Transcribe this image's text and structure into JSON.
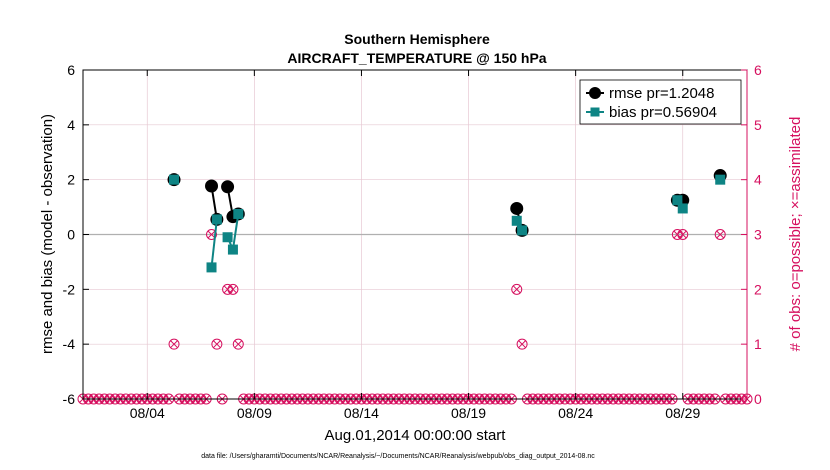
{
  "chart_data": {
    "type": "line",
    "title": "Southern Hemisphere",
    "subtitle": "AIRCRAFT_TEMPERATURE @ 150 hPa",
    "xlabel": "Aug.01,2014 00:00:00 start",
    "ylabel": "rmse and bias (model - observation)",
    "ylabel_right": "# of obs: o=possible; ×=assimilated",
    "footer": "data file: /Users/gharamti/Documents/NCAR/Reanalysis/~/Documents/NCAR/Reanalysis/webpub/obs_diag_output_2014-08.nc",
    "xlim": [
      1.0,
      32.0
    ],
    "ylim": [
      -6,
      6
    ],
    "ylim_right": [
      0,
      6
    ],
    "x_ticks": [
      4,
      9,
      14,
      19,
      24,
      29
    ],
    "x_tick_labels": [
      "08/04",
      "08/09",
      "08/14",
      "08/19",
      "08/24",
      "08/29"
    ],
    "y_ticks": [
      -6,
      -4,
      -2,
      0,
      2,
      4,
      6
    ],
    "y_tick_labels": [
      "-6",
      "-4",
      "-2",
      "0",
      "2",
      "4",
      "6"
    ],
    "y_ticks_right": [
      0,
      1,
      2,
      3,
      4,
      5,
      6
    ],
    "y_tick_labels_right": [
      "0",
      "1",
      "2",
      "3",
      "4",
      "5",
      "6"
    ],
    "colors": {
      "rmse": "#000000",
      "bias": "#0e8484",
      "obs": "#d6105f",
      "grid": "#e6c8d2",
      "zero": "#b0b0b0"
    },
    "series": [
      {
        "name": "rmse pr=1.2048",
        "segments": [
          [
            [
              5.25,
              2.0
            ]
          ],
          [
            [
              7.0,
              1.77
            ],
            [
              7.25,
              0.55
            ]
          ],
          [
            [
              7.75,
              1.74
            ],
            [
              8.0,
              0.65
            ],
            [
              8.25,
              0.75
            ]
          ],
          [
            [
              21.25,
              0.95
            ],
            [
              21.5,
              0.15
            ]
          ],
          [
            [
              28.75,
              1.25
            ],
            [
              29.0,
              1.25
            ]
          ],
          [
            [
              30.75,
              2.15
            ]
          ]
        ]
      },
      {
        "name": "bias pr=0.56904",
        "segments": [
          [
            [
              5.25,
              2.0
            ]
          ],
          [
            [
              7.0,
              -1.2
            ],
            [
              7.25,
              0.55
            ]
          ],
          [
            [
              7.75,
              -0.1
            ],
            [
              8.0,
              -0.55
            ],
            [
              8.25,
              0.75
            ]
          ],
          [
            [
              21.25,
              0.5
            ],
            [
              21.5,
              0.15
            ]
          ],
          [
            [
              28.75,
              1.25
            ],
            [
              29.0,
              0.95
            ]
          ],
          [
            [
              30.75,
              2.0
            ]
          ]
        ]
      }
    ],
    "obs_count": {
      "x": [
        1.0,
        1.25,
        1.5,
        1.75,
        2.0,
        2.25,
        2.5,
        2.75,
        3.0,
        3.25,
        3.5,
        3.75,
        4.0,
        4.25,
        4.5,
        4.75,
        5.0,
        5.25,
        5.5,
        5.75,
        6.0,
        6.25,
        6.5,
        6.75,
        7.0,
        7.25,
        7.5,
        7.75,
        8.0,
        8.25,
        8.5,
        8.75,
        9.0,
        9.25,
        9.5,
        9.75,
        10.0,
        10.25,
        10.5,
        10.75,
        11.0,
        11.25,
        11.5,
        11.75,
        12.0,
        12.25,
        12.5,
        12.75,
        13.0,
        13.25,
        13.5,
        13.75,
        14.0,
        14.25,
        14.5,
        14.75,
        15.0,
        15.25,
        15.5,
        15.75,
        16.0,
        16.25,
        16.5,
        16.75,
        17.0,
        17.25,
        17.5,
        17.75,
        18.0,
        18.25,
        18.5,
        18.75,
        19.0,
        19.25,
        19.5,
        19.75,
        20.0,
        20.25,
        20.5,
        20.75,
        21.0,
        21.25,
        21.5,
        21.75,
        22.0,
        22.25,
        22.5,
        22.75,
        23.0,
        23.25,
        23.5,
        23.75,
        24.0,
        24.25,
        24.5,
        24.75,
        25.0,
        25.25,
        25.5,
        25.75,
        26.0,
        26.25,
        26.5,
        26.75,
        27.0,
        27.25,
        27.5,
        27.75,
        28.0,
        28.25,
        28.5,
        28.75,
        29.0,
        29.25,
        29.5,
        29.75,
        30.0,
        30.25,
        30.5,
        30.75,
        31.0,
        31.25,
        31.5,
        31.75,
        32.0
      ],
      "possible": [
        0,
        0,
        0,
        0,
        0,
        0,
        0,
        0,
        0,
        0,
        0,
        0,
        0,
        0,
        0,
        0,
        0,
        1,
        0,
        0,
        0,
        0,
        0,
        0,
        3,
        1,
        0,
        2,
        2,
        1,
        0,
        0,
        0,
        0,
        0,
        0,
        0,
        0,
        0,
        0,
        0,
        0,
        0,
        0,
        0,
        0,
        0,
        0,
        0,
        0,
        0,
        0,
        0,
        0,
        0,
        0,
        0,
        0,
        0,
        0,
        0,
        0,
        0,
        0,
        0,
        0,
        0,
        0,
        0,
        0,
        0,
        0,
        0,
        0,
        0,
        0,
        0,
        0,
        0,
        0,
        0,
        2,
        1,
        0,
        0,
        0,
        0,
        0,
        0,
        0,
        0,
        0,
        0,
        0,
        0,
        0,
        0,
        0,
        0,
        0,
        0,
        0,
        0,
        0,
        0,
        0,
        0,
        0,
        0,
        0,
        0,
        3,
        3,
        0,
        0,
        0,
        0,
        0,
        0,
        3,
        0,
        0,
        0,
        0,
        0
      ]
    },
    "legend_position": "top-right",
    "grid": true
  }
}
